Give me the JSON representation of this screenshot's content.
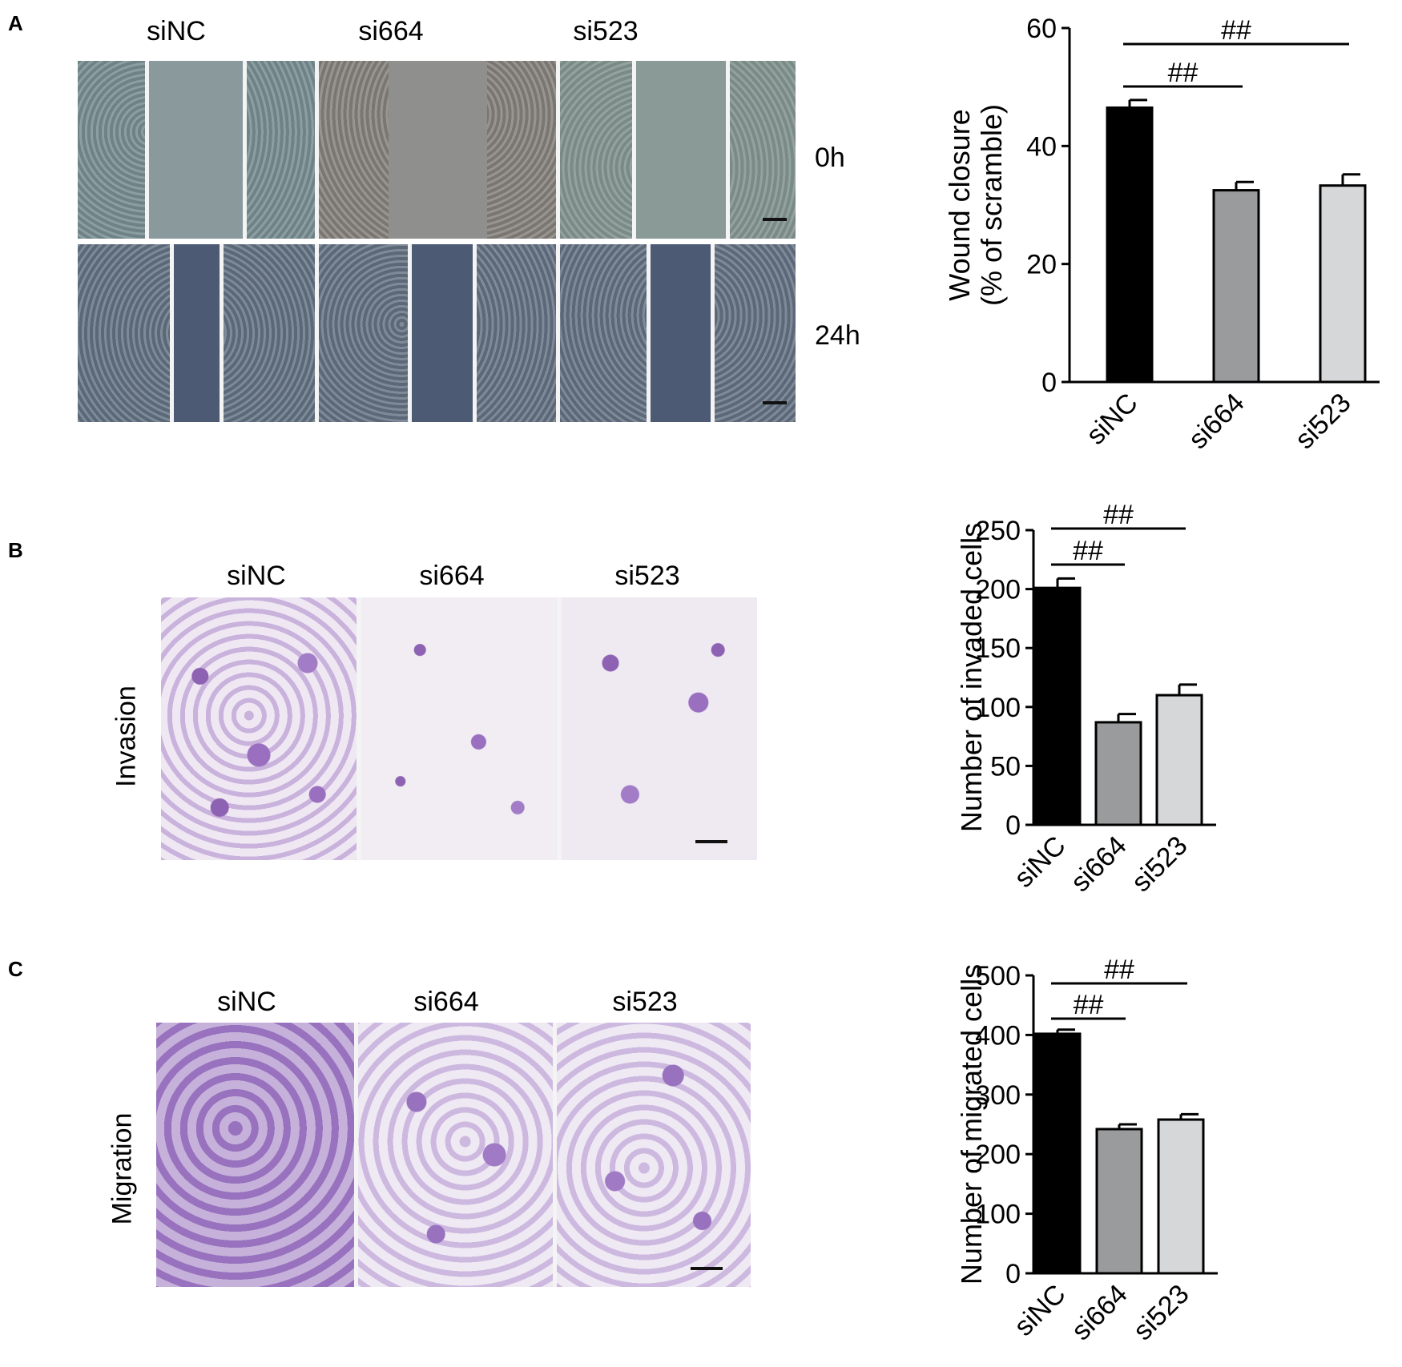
{
  "panels": {
    "a": {
      "letter": "A",
      "columns": [
        "siNC",
        "si664",
        "si523"
      ],
      "timepoints": [
        "0h",
        "24h"
      ]
    },
    "b": {
      "letter": "B",
      "columns": [
        "siNC",
        "si664",
        "si523"
      ],
      "row_label": "Invasion"
    },
    "c": {
      "letter": "C",
      "columns": [
        "siNC",
        "si664",
        "si523"
      ],
      "row_label": "Migration"
    }
  },
  "colors": {
    "bar_siNC": "#000000",
    "bar_si664": "#9a9b9d",
    "bar_si523": "#d6d7d9",
    "wound_field": "#7d8f93",
    "scratch_0h": "#8a9a9c",
    "scratch_24h": "#4c5a73",
    "stain_bg": "#eee9f1",
    "stain_cell": "#8e62b3"
  },
  "chart_data": [
    {
      "type": "bar",
      "panel": "A",
      "categories": [
        "siNC",
        "si664",
        "si523"
      ],
      "values": [
        46.5,
        32.5,
        33.3
      ],
      "errors": [
        1.3,
        1.4,
        1.9
      ],
      "ylabel_line1": "Wound closure",
      "ylabel_line2": "(% of scramble)",
      "ylim": [
        0,
        60
      ],
      "yticks": [
        0,
        20,
        40,
        60
      ],
      "significance": [
        {
          "from": 0,
          "to": 1,
          "label": "##"
        },
        {
          "from": 0,
          "to": 2,
          "label": "##"
        }
      ]
    },
    {
      "type": "bar",
      "panel": "B",
      "categories": [
        "siNC",
        "si664",
        "si523"
      ],
      "values": [
        201,
        87,
        110
      ],
      "errors": [
        8,
        7,
        9
      ],
      "ylabel": "Number of invaded cells",
      "ylim": [
        0,
        250
      ],
      "yticks": [
        0,
        50,
        100,
        150,
        200,
        250
      ],
      "significance": [
        {
          "from": 0,
          "to": 1,
          "label": "##"
        },
        {
          "from": 0,
          "to": 2,
          "label": "##"
        }
      ]
    },
    {
      "type": "bar",
      "panel": "C",
      "categories": [
        "siNC",
        "si664",
        "si523"
      ],
      "values": [
        402,
        242,
        258
      ],
      "errors": [
        7,
        8,
        9
      ],
      "ylabel": "Number of migrated cells",
      "ylim": [
        0,
        500
      ],
      "yticks": [
        0,
        100,
        200,
        300,
        400,
        500
      ],
      "significance": [
        {
          "from": 0,
          "to": 1,
          "label": "##"
        },
        {
          "from": 0,
          "to": 2,
          "label": "##"
        }
      ]
    }
  ]
}
